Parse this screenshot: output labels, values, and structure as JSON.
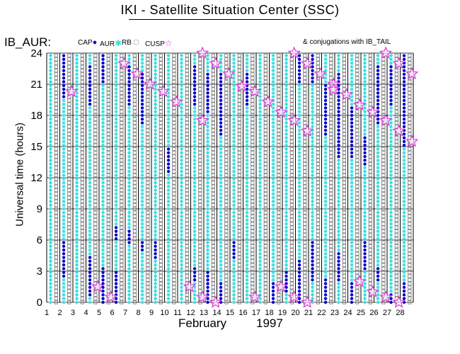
{
  "page": {
    "title": "IKI - Satellite Situation Center (SSC)",
    "instrument": "IB_AUR:",
    "conjugations_note": "& conjugations with IB_TAIL"
  },
  "legend": [
    {
      "label": "CAP",
      "marker": "dot",
      "color": "#0000cc"
    },
    {
      "label": "AUR",
      "marker": "asterisk",
      "color": "#33dddd"
    },
    {
      "label": "RB",
      "marker": "square",
      "color": "#777777"
    },
    {
      "label": "CUSP",
      "marker": "star",
      "color": "#dd33dd"
    }
  ],
  "chart_data": {
    "type": "scatter",
    "title": "IKI - Satellite Situation Center (SSC)",
    "ylabel": "Universal time (hours)",
    "xlabel_month": "February",
    "xlabel_year": "1997",
    "x_ticks": [
      "1",
      "2",
      "3",
      "4",
      "5",
      "6",
      "7",
      "8",
      "9",
      "10",
      "11",
      "12",
      "13",
      "14",
      "15",
      "16",
      "17",
      "18",
      "19",
      "20",
      "21",
      "22",
      "23",
      "24",
      "25",
      "26",
      "27",
      "28"
    ],
    "y_ticks": [
      "0",
      "3",
      "6",
      "9",
      "12",
      "15",
      "18",
      "21",
      "24"
    ],
    "xlim": [
      1,
      29
    ],
    "ylim": [
      0,
      24
    ],
    "grid": true,
    "series_colors": {
      "CAP": "#0000cc",
      "AUR": "#33dddd",
      "RB": "#777777",
      "CUSP": "#dd33dd"
    },
    "cap_intervals": [
      {
        "day": 2,
        "from": 19.5,
        "to": 24
      },
      {
        "day": 2,
        "from": 2.5,
        "to": 6
      },
      {
        "day": 4,
        "from": 19,
        "to": 23
      },
      {
        "day": 4,
        "from": 0.5,
        "to": 4.5
      },
      {
        "day": 5,
        "from": 21,
        "to": 24
      },
      {
        "day": 5,
        "from": 0,
        "to": 3.5
      },
      {
        "day": 6,
        "from": 0,
        "to": 3
      },
      {
        "day": 6,
        "from": 6,
        "to": 7.5
      },
      {
        "day": 7,
        "from": 19,
        "to": 23
      },
      {
        "day": 7,
        "from": 5.5,
        "to": 7
      },
      {
        "day": 8,
        "from": 17,
        "to": 22
      },
      {
        "day": 8,
        "from": 5,
        "to": 6
      },
      {
        "day": 9,
        "from": 4,
        "to": 6
      },
      {
        "day": 10,
        "from": 12.5,
        "to": 15
      },
      {
        "day": 12,
        "from": 19,
        "to": 23
      },
      {
        "day": 12,
        "from": 2,
        "to": 3.5
      },
      {
        "day": 13,
        "from": 18,
        "to": 22
      },
      {
        "day": 13,
        "from": 0,
        "to": 3
      },
      {
        "day": 14,
        "from": 16,
        "to": 22
      },
      {
        "day": 14,
        "from": 0,
        "to": 2
      },
      {
        "day": 15,
        "from": 4,
        "to": 6
      },
      {
        "day": 16,
        "from": 19,
        "to": 22
      },
      {
        "day": 18,
        "from": 0,
        "to": 2
      },
      {
        "day": 19,
        "from": 1,
        "to": 3
      },
      {
        "day": 20,
        "from": 21,
        "to": 24
      },
      {
        "day": 20,
        "from": 0,
        "to": 4
      },
      {
        "day": 21,
        "from": 21,
        "to": 24
      },
      {
        "day": 21,
        "from": 2,
        "to": 6
      },
      {
        "day": 22,
        "from": 16,
        "to": 21
      },
      {
        "day": 22,
        "from": 0,
        "to": 2.5
      },
      {
        "day": 23,
        "from": 14,
        "to": 22
      },
      {
        "day": 23,
        "from": 2,
        "to": 5
      },
      {
        "day": 24,
        "from": 14,
        "to": 19
      },
      {
        "day": 24,
        "from": 0,
        "to": 2
      },
      {
        "day": 25,
        "from": 13,
        "to": 16
      },
      {
        "day": 25,
        "from": 3,
        "to": 6
      },
      {
        "day": 26,
        "from": 17,
        "to": 23
      },
      {
        "day": 26,
        "from": 2,
        "to": 3.5
      },
      {
        "day": 27,
        "from": 19,
        "to": 23
      },
      {
        "day": 27,
        "from": 0,
        "to": 1
      },
      {
        "day": 28,
        "from": 15,
        "to": 24
      },
      {
        "day": 28,
        "from": 0,
        "to": 2
      }
    ],
    "cusp_events": [
      {
        "day": 3,
        "hour": 20.3
      },
      {
        "day": 5,
        "hour": 1.5
      },
      {
        "day": 6,
        "hour": 0.5
      },
      {
        "day": 7,
        "hour": 23.0
      },
      {
        "day": 8,
        "hour": 22.0
      },
      {
        "day": 9,
        "hour": 21.0
      },
      {
        "day": 10,
        "hour": 20.3
      },
      {
        "day": 11,
        "hour": 19.3
      },
      {
        "day": 12,
        "hour": 1.5
      },
      {
        "day": 13,
        "hour": 24.0
      },
      {
        "day": 13,
        "hour": 17.5
      },
      {
        "day": 13,
        "hour": 0.5
      },
      {
        "day": 14,
        "hour": 23.0
      },
      {
        "day": 14,
        "hour": 0.0
      },
      {
        "day": 15,
        "hour": 22.0
      },
      {
        "day": 16,
        "hour": 20.8
      },
      {
        "day": 17,
        "hour": 20.3
      },
      {
        "day": 17,
        "hour": 0.5
      },
      {
        "day": 18,
        "hour": 19.3
      },
      {
        "day": 19,
        "hour": 18.3
      },
      {
        "day": 19,
        "hour": 1.5
      },
      {
        "day": 20,
        "hour": 24.0
      },
      {
        "day": 20,
        "hour": 17.5
      },
      {
        "day": 20,
        "hour": 0.5
      },
      {
        "day": 21,
        "hour": 23.0
      },
      {
        "day": 21,
        "hour": 16.5
      },
      {
        "day": 21,
        "hour": 0.0
      },
      {
        "day": 22,
        "hour": 22.0
      },
      {
        "day": 23,
        "hour": 21.0
      },
      {
        "day": 23,
        "hour": 20.5
      },
      {
        "day": 24,
        "hour": 20.0
      },
      {
        "day": 25,
        "hour": 19.0
      },
      {
        "day": 25,
        "hour": 2.0
      },
      {
        "day": 26,
        "hour": 18.3
      },
      {
        "day": 26,
        "hour": 1.0
      },
      {
        "day": 27,
        "hour": 24.0
      },
      {
        "day": 27,
        "hour": 17.5
      },
      {
        "day": 27,
        "hour": 0.5
      },
      {
        "day": 28,
        "hour": 23.0
      },
      {
        "day": 28,
        "hour": 16.5
      },
      {
        "day": 28,
        "hour": 0.0
      },
      {
        "day": 29,
        "hour": 22.0
      },
      {
        "day": 29,
        "hour": 15.5
      }
    ]
  }
}
